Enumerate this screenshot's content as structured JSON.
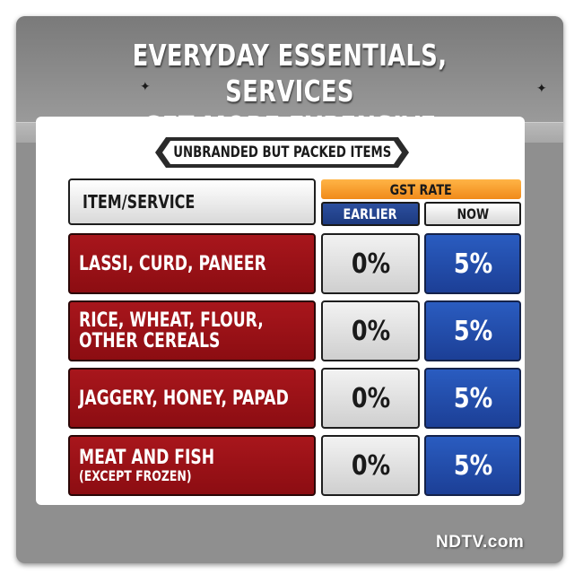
{
  "title_line1": "EVERYDAY ESSENTIALS, SERVICES",
  "title_line2": "GET MORE EXPENSIVE",
  "subtitle": "UNBRANDED BUT PACKED ITEMS",
  "table": {
    "item_header": "ITEM/SERVICE",
    "rate_header": "GST RATE",
    "earlier_header": "EARLIER",
    "now_header": "NOW",
    "rows": [
      {
        "item": "LASSI, CURD, PANEER",
        "item_line2": "",
        "note": "",
        "earlier": "0%",
        "now": "5%"
      },
      {
        "item": "RICE, WHEAT, FLOUR,",
        "item_line2": "OTHER CEREALS",
        "note": "",
        "earlier": "0%",
        "now": "5%"
      },
      {
        "item": "JAGGERY, HONEY, PAPAD",
        "item_line2": "",
        "note": "",
        "earlier": "0%",
        "now": "5%"
      },
      {
        "item": "MEAT AND FISH",
        "item_line2": "",
        "note": "(EXCEPT FROZEN)",
        "earlier": "0%",
        "now": "5%"
      }
    ]
  },
  "watermark": "NDTV.com",
  "colors": {
    "item_cell": "#9c1218",
    "now_cell": "#2250ad",
    "earlier_cell": "#e0e0e0",
    "rate_header": "#f59a24"
  }
}
